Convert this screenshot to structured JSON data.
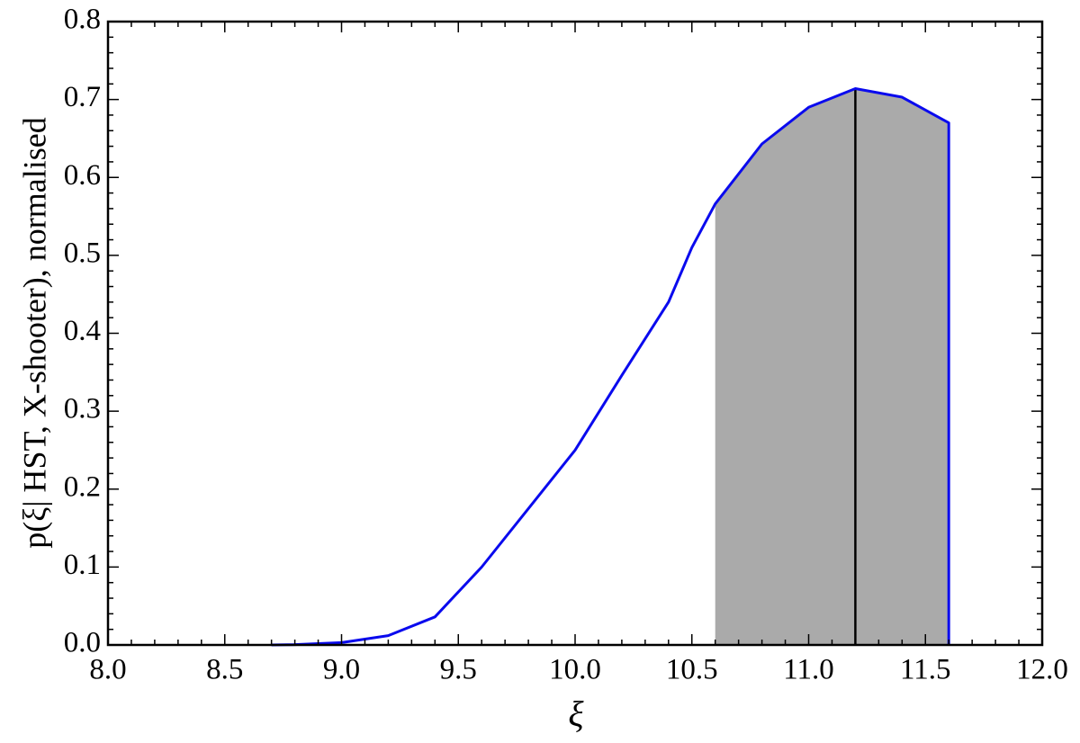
{
  "chart_data": {
    "type": "line",
    "xlabel": "ξ",
    "ylabel": "p(ξ| HST, X-shooter), normalised",
    "x": [
      8.7,
      8.8,
      9.0,
      9.2,
      9.4,
      9.6,
      9.8,
      10.0,
      10.2,
      10.4,
      10.5,
      10.6,
      10.8,
      11.0,
      11.2,
      11.4,
      11.6,
      11.6
    ],
    "series": [
      {
        "color": "#0a0aee",
        "values": [
          0,
          0.0005,
          0.003,
          0.012,
          0.036,
          0.1,
          0.175,
          0.25,
          0.346,
          0.44,
          0.51,
          0.566,
          0.643,
          0.69,
          0.714,
          0.703,
          0.67,
          0
        ]
      }
    ],
    "shade_range": [
      10.6,
      11.6
    ],
    "shade_color": "#aaaaaa",
    "vline": 11.2,
    "vline_color": "#000000",
    "xlim": [
      8.0,
      12.0
    ],
    "xticks": [
      {
        "value": 8.0,
        "label": "8.0"
      },
      8.5,
      {
        "value": 9.0,
        "label": "9.0"
      },
      9.5,
      {
        "value": 10.0,
        "label": "10.0"
      },
      10.5,
      {
        "value": 11.0,
        "label": "11.0"
      },
      11.5,
      {
        "value": 12.0,
        "label": "12.0"
      }
    ],
    "ylim": [
      0,
      0.8
    ],
    "yticks": [
      {
        "value": 0,
        "label": "0.0"
      },
      0.1,
      0.2,
      0.3,
      0.4,
      0.5,
      0.6,
      0.7,
      0.8
    ],
    "grid": false
  }
}
